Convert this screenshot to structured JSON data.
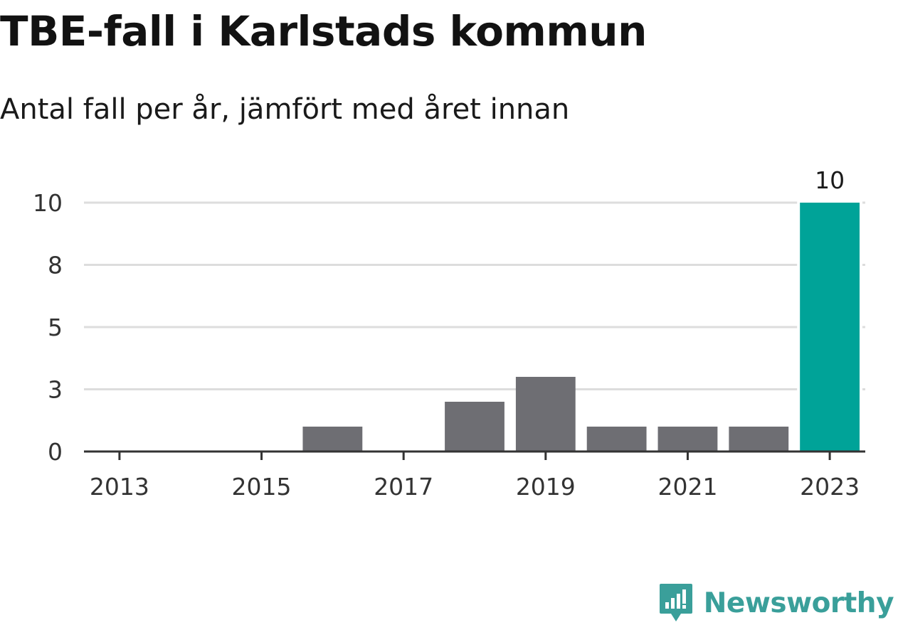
{
  "header": {
    "title": "TBE-fall i Karlstads kommun",
    "subtitle": "Antal fall per år, jämfört med året innan"
  },
  "brand": {
    "name": "Newsworthy",
    "logo_icon": "chart-speech-bubble-icon",
    "color": "#3a9f9a"
  },
  "colors": {
    "bar_default": "#6e6e73",
    "bar_highlight": "#00a398",
    "grid": "#dddddd",
    "axis": "#333333",
    "tick_text": "#333333"
  },
  "chart_data": {
    "type": "bar",
    "x": [
      2013,
      2014,
      2015,
      2016,
      2017,
      2018,
      2019,
      2020,
      2021,
      2022,
      2023
    ],
    "values": [
      0,
      0,
      0,
      1,
      0,
      2,
      3,
      1,
      1,
      1,
      10
    ],
    "highlight_index": 10,
    "data_labels": [
      {
        "index": 10,
        "text": "10"
      }
    ],
    "x_tick_labels": [
      "2013",
      "2015",
      "2017",
      "2019",
      "2021",
      "2023"
    ],
    "y_tick_labels": [
      "0",
      "3",
      "5",
      "8",
      "10"
    ],
    "y_ticks": [
      0,
      2.5,
      5,
      7.5,
      10
    ],
    "ylim": [
      0,
      10
    ],
    "grid": true,
    "legend": "none",
    "xlabel": "",
    "ylabel": ""
  }
}
